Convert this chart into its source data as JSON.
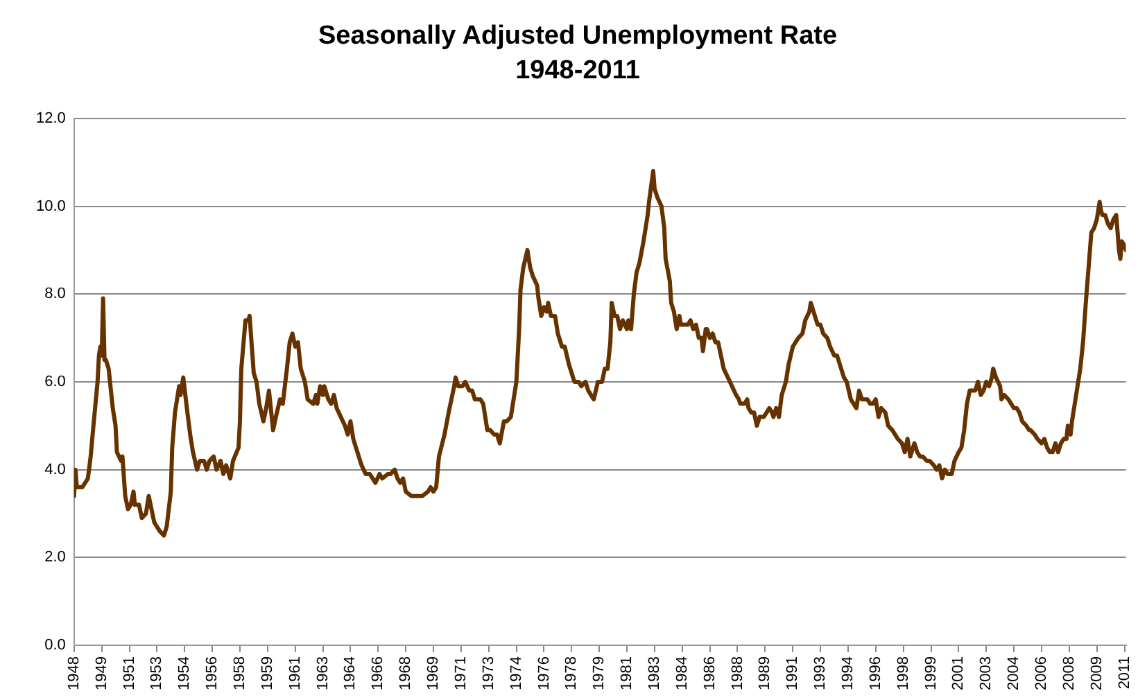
{
  "chart_data": {
    "type": "line",
    "title": "Seasonally Adjusted Unemployment Rate\n1948-2011",
    "x": [
      "1948-01",
      "1948-02",
      "1948-03",
      "1948-07",
      "1948-11",
      "1949-01",
      "1949-03",
      "1949-06",
      "1949-07",
      "1949-08",
      "1949-09",
      "1949-10",
      "1949-11",
      "1949-12",
      "1950-02",
      "1950-05",
      "1950-07",
      "1950-08",
      "1950-11",
      "1950-12",
      "1951-02",
      "1951-04",
      "1951-06",
      "1951-08",
      "1951-09",
      "1951-12",
      "1952-02",
      "1952-05",
      "1952-07",
      "1952-09",
      "1952-11",
      "1953-01",
      "1953-03",
      "1953-06",
      "1953-08",
      "1953-11",
      "1953-12",
      "1954-02",
      "1954-05",
      "1954-06",
      "1954-08",
      "1954-11",
      "1955-01",
      "1955-03",
      "1955-06",
      "1955-08",
      "1955-11",
      "1956-01",
      "1956-03",
      "1956-06",
      "1956-08",
      "1956-11",
      "1957-01",
      "1957-03",
      "1957-06",
      "1957-08",
      "1957-12",
      "1958-01",
      "1958-02",
      "1958-05",
      "1958-07",
      "1958-08",
      "1958-11",
      "1959-01",
      "1959-03",
      "1959-06",
      "1959-08",
      "1959-10",
      "1960-01",
      "1960-03",
      "1960-06",
      "1960-08",
      "1960-11",
      "1961-01",
      "1961-03",
      "1961-05",
      "1961-07",
      "1961-09",
      "1961-12",
      "1962-02",
      "1962-06",
      "1962-08",
      "1962-09",
      "1962-11",
      "1963-01",
      "1963-02",
      "1963-05",
      "1963-07",
      "1963-09",
      "1963-11",
      "1964-02",
      "1964-05",
      "1964-07",
      "1964-09",
      "1964-11",
      "1965-02",
      "1965-05",
      "1965-08",
      "1965-11",
      "1966-01",
      "1966-03",
      "1966-06",
      "1966-08",
      "1966-12",
      "1967-02",
      "1967-05",
      "1967-07",
      "1967-09",
      "1967-11",
      "1968-01",
      "1968-05",
      "1968-09",
      "1969-01",
      "1969-05",
      "1969-07",
      "1969-09",
      "1969-11",
      "1970-01",
      "1970-05",
      "1970-08",
      "1970-12",
      "1971-01",
      "1971-03",
      "1971-06",
      "1971-08",
      "1971-11",
      "1972-01",
      "1972-03",
      "1972-07",
      "1972-09",
      "1972-12",
      "1973-02",
      "1973-05",
      "1973-07",
      "1973-09",
      "1973-12",
      "1974-02",
      "1974-05",
      "1974-07",
      "1974-09",
      "1974-11",
      "1974-12",
      "1975-02",
      "1975-05",
      "1975-07",
      "1975-09",
      "1975-12",
      "1976-01",
      "1976-03",
      "1976-05",
      "1976-07",
      "1976-08",
      "1976-10",
      "1977-01",
      "1977-03",
      "1977-06",
      "1977-08",
      "1977-11",
      "1978-01",
      "1978-03",
      "1978-06",
      "1978-08",
      "1978-11",
      "1979-01",
      "1979-03",
      "1979-05",
      "1979-08",
      "1979-11",
      "1980-01",
      "1980-03",
      "1980-05",
      "1980-06",
      "1980-08",
      "1980-10",
      "1980-12",
      "1981-02",
      "1981-05",
      "1981-06",
      "1981-08",
      "1981-10",
      "1981-12",
      "1982-02",
      "1982-05",
      "1982-07",
      "1982-08",
      "1982-09",
      "1982-12",
      "1983-01",
      "1983-03",
      "1983-06",
      "1983-08",
      "1983-09",
      "1983-12",
      "1984-01",
      "1984-03",
      "1984-05",
      "1984-07",
      "1984-08",
      "1984-11",
      "1985-01",
      "1985-03",
      "1985-05",
      "1985-07",
      "1985-09",
      "1985-11",
      "1985-12",
      "1986-02",
      "1986-03",
      "1986-05",
      "1986-07",
      "1986-09",
      "1986-11",
      "1987-01",
      "1987-03",
      "1987-06",
      "1987-09",
      "1987-12",
      "1988-02",
      "1988-03",
      "1988-06",
      "1988-08",
      "1988-09",
      "1988-11",
      "1989-01",
      "1989-03",
      "1989-05",
      "1989-08",
      "1989-10",
      "1989-12",
      "1990-02",
      "1990-03",
      "1990-05",
      "1990-07",
      "1990-09",
      "1990-12",
      "1991-02",
      "1991-05",
      "1991-07",
      "1991-09",
      "1991-12",
      "1992-02",
      "1992-05",
      "1992-06",
      "1992-08",
      "1992-11",
      "1993-01",
      "1993-03",
      "1993-06",
      "1993-08",
      "1993-11",
      "1994-01",
      "1994-03",
      "1994-06",
      "1994-08",
      "1994-11",
      "1995-01",
      "1995-03",
      "1995-05",
      "1995-07",
      "1995-09",
      "1995-11",
      "1996-01",
      "1996-03",
      "1996-05",
      "1996-07",
      "1996-09",
      "1996-12",
      "1997-02",
      "1997-05",
      "1997-07",
      "1997-09",
      "1997-12",
      "1998-02",
      "1998-04",
      "1998-06",
      "1998-08",
      "1998-09",
      "1998-11",
      "1999-01",
      "1999-03",
      "1999-06",
      "1999-08",
      "1999-11",
      "2000-01",
      "2000-03",
      "2000-05",
      "2000-07",
      "2000-09",
      "2000-12",
      "2001-02",
      "2001-05",
      "2001-07",
      "2001-09",
      "2001-11",
      "2002-01",
      "2002-03",
      "2002-05",
      "2002-07",
      "2002-09",
      "2002-11",
      "2003-01",
      "2003-03",
      "2003-05",
      "2003-06",
      "2003-08",
      "2003-11",
      "2003-12",
      "2004-02",
      "2004-05",
      "2004-07",
      "2004-09",
      "2004-11",
      "2005-01",
      "2005-03",
      "2005-06",
      "2005-08",
      "2005-09",
      "2005-12",
      "2006-02",
      "2006-05",
      "2006-07",
      "2006-09",
      "2006-11",
      "2007-01",
      "2007-03",
      "2007-05",
      "2007-07",
      "2007-09",
      "2007-11",
      "2007-12",
      "2008-02",
      "2008-03",
      "2008-05",
      "2008-07",
      "2008-09",
      "2008-11",
      "2009-01",
      "2009-03",
      "2009-05",
      "2009-07",
      "2009-09",
      "2009-11",
      "2009-12",
      "2010-01",
      "2010-03",
      "2010-05",
      "2010-07",
      "2010-09",
      "2010-11",
      "2010-12",
      "2011-01",
      "2011-02",
      "2011-03",
      "2011-05",
      "2011-06"
    ],
    "series": [
      {
        "color": "#663300",
        "values": [
          3.4,
          4.0,
          3.6,
          3.6,
          3.8,
          4.3,
          5.0,
          6.0,
          6.6,
          6.8,
          6.6,
          7.9,
          6.5,
          6.5,
          6.3,
          5.4,
          5.0,
          4.4,
          4.2,
          4.3,
          3.4,
          3.1,
          3.2,
          3.5,
          3.2,
          3.2,
          2.9,
          3.0,
          3.4,
          3.1,
          2.8,
          2.7,
          2.6,
          2.5,
          2.7,
          3.5,
          4.5,
          5.3,
          5.9,
          5.7,
          6.1,
          5.3,
          4.8,
          4.4,
          4.0,
          4.2,
          4.2,
          4.0,
          4.2,
          4.3,
          4.0,
          4.2,
          3.9,
          4.1,
          3.8,
          4.2,
          4.5,
          5.1,
          6.3,
          7.4,
          7.4,
          7.5,
          6.2,
          6.0,
          5.5,
          5.1,
          5.4,
          5.8,
          4.9,
          5.2,
          5.6,
          5.5,
          6.3,
          6.9,
          7.1,
          6.8,
          6.9,
          6.3,
          6.0,
          5.6,
          5.5,
          5.7,
          5.5,
          5.9,
          5.7,
          5.9,
          5.6,
          5.5,
          5.7,
          5.4,
          5.2,
          5.0,
          4.8,
          5.1,
          4.7,
          4.4,
          4.1,
          3.9,
          3.9,
          3.8,
          3.7,
          3.9,
          3.8,
          3.9,
          3.9,
          4.0,
          3.8,
          3.7,
          3.8,
          3.5,
          3.4,
          3.4,
          3.4,
          3.5,
          3.6,
          3.5,
          3.6,
          4.3,
          4.8,
          5.3,
          5.9,
          6.1,
          5.9,
          5.9,
          6.0,
          5.8,
          5.8,
          5.6,
          5.6,
          5.5,
          4.9,
          4.9,
          4.8,
          4.8,
          4.6,
          5.1,
          5.1,
          5.2,
          5.6,
          6.0,
          7.2,
          8.1,
          8.6,
          9.0,
          8.6,
          8.4,
          8.2,
          7.9,
          7.5,
          7.7,
          7.6,
          7.8,
          7.5,
          7.5,
          7.1,
          6.8,
          6.8,
          6.4,
          6.2,
          6.0,
          6.0,
          5.9,
          6.0,
          5.8,
          5.7,
          5.6,
          6.0,
          6.0,
          6.3,
          6.3,
          6.9,
          7.8,
          7.5,
          7.5,
          7.2,
          7.4,
          7.2,
          7.4,
          7.2,
          8.0,
          8.5,
          8.7,
          9.2,
          9.6,
          9.8,
          10.1,
          10.8,
          10.4,
          10.2,
          10.0,
          9.5,
          8.8,
          8.3,
          7.8,
          7.6,
          7.2,
          7.5,
          7.3,
          7.3,
          7.3,
          7.4,
          7.2,
          7.3,
          7.0,
          7.0,
          6.7,
          7.2,
          7.2,
          7.0,
          7.1,
          6.9,
          6.9,
          6.6,
          6.3,
          6.1,
          5.9,
          5.7,
          5.6,
          5.5,
          5.5,
          5.6,
          5.4,
          5.3,
          5.3,
          5.0,
          5.2,
          5.2,
          5.3,
          5.4,
          5.3,
          5.2,
          5.4,
          5.2,
          5.7,
          6.0,
          6.4,
          6.8,
          6.9,
          7.0,
          7.1,
          7.4,
          7.6,
          7.8,
          7.6,
          7.3,
          7.3,
          7.1,
          7.0,
          6.8,
          6.6,
          6.6,
          6.4,
          6.1,
          6.0,
          5.6,
          5.5,
          5.4,
          5.8,
          5.6,
          5.6,
          5.6,
          5.5,
          5.5,
          5.6,
          5.2,
          5.4,
          5.3,
          5.0,
          4.9,
          4.8,
          4.7,
          4.6,
          4.4,
          4.7,
          4.3,
          4.5,
          4.6,
          4.4,
          4.3,
          4.3,
          4.2,
          4.2,
          4.1,
          4.0,
          4.1,
          3.8,
          4.0,
          3.9,
          3.9,
          4.2,
          4.4,
          4.5,
          4.9,
          5.5,
          5.8,
          5.8,
          5.8,
          6.0,
          5.7,
          5.8,
          6.0,
          5.9,
          6.1,
          6.3,
          6.1,
          5.9,
          5.6,
          5.7,
          5.6,
          5.5,
          5.4,
          5.4,
          5.3,
          5.1,
          5.0,
          4.9,
          4.9,
          4.8,
          4.7,
          4.6,
          4.7,
          4.5,
          4.4,
          4.4,
          4.6,
          4.4,
          4.6,
          4.7,
          4.7,
          5.0,
          4.8,
          5.1,
          5.5,
          5.9,
          6.3,
          6.9,
          7.8,
          8.6,
          9.4,
          9.5,
          9.7,
          10.1,
          9.9,
          9.8,
          9.8,
          9.6,
          9.5,
          9.7,
          9.8,
          9.4,
          9.0,
          8.8,
          9.2,
          9.1,
          9.0
        ]
      }
    ],
    "xlim": [
      "1948-01",
      "2011-06"
    ],
    "xticks": [
      {
        "value": "1948-01",
        "label": "1948"
      },
      {
        "value": "1949-09",
        "label": "1949"
      },
      {
        "value": "1951-05",
        "label": "1951"
      },
      {
        "value": "1953-01",
        "label": "1953"
      },
      {
        "value": "1954-09",
        "label": "1954"
      },
      {
        "value": "1956-05",
        "label": "1956"
      },
      {
        "value": "1958-01",
        "label": "1958"
      },
      {
        "value": "1959-09",
        "label": "1959"
      },
      {
        "value": "1961-05",
        "label": "1961"
      },
      {
        "value": "1963-01",
        "label": "1963"
      },
      {
        "value": "1964-09",
        "label": "1964"
      },
      {
        "value": "1966-05",
        "label": "1966"
      },
      {
        "value": "1968-01",
        "label": "1968"
      },
      {
        "value": "1969-09",
        "label": "1969"
      },
      {
        "value": "1971-05",
        "label": "1971"
      },
      {
        "value": "1973-01",
        "label": "1973"
      },
      {
        "value": "1974-09",
        "label": "1974"
      },
      {
        "value": "1976-05",
        "label": "1976"
      },
      {
        "value": "1978-01",
        "label": "1978"
      },
      {
        "value": "1979-09",
        "label": "1979"
      },
      {
        "value": "1981-05",
        "label": "1981"
      },
      {
        "value": "1983-01",
        "label": "1983"
      },
      {
        "value": "1984-09",
        "label": "1984"
      },
      {
        "value": "1986-05",
        "label": "1986"
      },
      {
        "value": "1988-01",
        "label": "1988"
      },
      {
        "value": "1989-09",
        "label": "1989"
      },
      {
        "value": "1991-05",
        "label": "1991"
      },
      {
        "value": "1993-01",
        "label": "1993"
      },
      {
        "value": "1994-09",
        "label": "1994"
      },
      {
        "value": "1996-05",
        "label": "1996"
      },
      {
        "value": "1998-01",
        "label": "1998"
      },
      {
        "value": "1999-09",
        "label": "1999"
      },
      {
        "value": "2001-05",
        "label": "2001"
      },
      {
        "value": "2003-01",
        "label": "2003"
      },
      {
        "value": "2004-09",
        "label": "2004"
      },
      {
        "value": "2006-05",
        "label": "2006"
      },
      {
        "value": "2008-01",
        "label": "2008"
      },
      {
        "value": "2009-09",
        "label": "2009"
      },
      {
        "value": "2011-05",
        "label": "2011"
      }
    ],
    "ylim": [
      0,
      12
    ],
    "yticks": [
      {
        "value": 0,
        "label": "0.0"
      },
      {
        "value": 2,
        "label": "2.0"
      },
      {
        "value": 4,
        "label": "4.0"
      },
      {
        "value": 6,
        "label": "6.0"
      },
      {
        "value": 8,
        "label": "8.0"
      },
      {
        "value": 10,
        "label": "10.0"
      },
      {
        "value": 12,
        "label": "12.0"
      }
    ],
    "grid": "y",
    "legend": false,
    "marker": "none",
    "line_style": "solid"
  }
}
